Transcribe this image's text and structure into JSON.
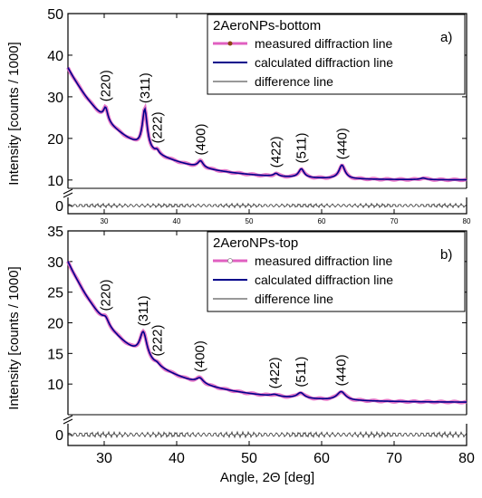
{
  "chart_data": [
    {
      "panel": "a)",
      "type": "line",
      "legend_title": "2AeroNPs-bottom",
      "legend_position": "top-right",
      "ylabel": "Intensity [counts / 1000]",
      "xlabel": "",
      "xlim": [
        25,
        80
      ],
      "ylim_upper": [
        8,
        50
      ],
      "ylim_lower": [
        -0.5,
        0.5
      ],
      "yticks_upper": [
        "10",
        "20",
        "30",
        "40",
        "50"
      ],
      "yticks_lower": [
        "0"
      ],
      "xticks": [
        "30",
        "40",
        "50",
        "60",
        "70",
        "80"
      ],
      "x_tick_style": "small labels",
      "axis_break": true,
      "background": 10,
      "decay": {
        "amp": 27,
        "rate": 0.12
      },
      "peaks": [
        {
          "label": "(220)",
          "x": 30.2,
          "height": 3.0,
          "width": 0.35
        },
        {
          "label": "(311)",
          "x": 35.6,
          "height": 9.5,
          "width": 0.4
        },
        {
          "label": "(222)",
          "x": 37.3,
          "height": 0.8,
          "width": 0.3
        },
        {
          "label": "(400)",
          "x": 43.3,
          "height": 1.6,
          "width": 0.45
        },
        {
          "label": "(422)",
          "x": 53.7,
          "height": 0.7,
          "width": 0.4
        },
        {
          "label": "(511)",
          "x": 57.2,
          "height": 2.1,
          "width": 0.45
        },
        {
          "label": "(440)",
          "x": 62.8,
          "height": 3.3,
          "width": 0.5
        },
        {
          "label": "",
          "x": 74.0,
          "height": 0.4,
          "width": 0.5
        }
      ],
      "series": [
        {
          "name": "measured diffraction line",
          "color": "#e060c0",
          "marker_color": "#8b4513",
          "marker": "dot"
        },
        {
          "name": "calculated diffraction line",
          "color": "#00008b"
        },
        {
          "name": "difference line",
          "color": "#333333"
        }
      ]
    },
    {
      "panel": "b)",
      "type": "line",
      "legend_title": "2AeroNPs-top",
      "legend_position": "top-right",
      "ylabel": "Intensity [counts / 1000]",
      "xlabel": "Angle, 2Θ [deg]",
      "xlim": [
        25,
        80
      ],
      "ylim_upper": [
        5,
        35
      ],
      "ylim_lower": [
        -0.5,
        0.5
      ],
      "yticks_upper": [
        "10",
        "15",
        "20",
        "25",
        "30",
        "35"
      ],
      "yticks_lower": [
        "0"
      ],
      "xticks": [
        "30",
        "40",
        "50",
        "60",
        "70",
        "80"
      ],
      "axis_break": true,
      "background": 7,
      "decay": {
        "amp": 23,
        "rate": 0.11
      },
      "peaks": [
        {
          "label": "(220)",
          "x": 30.2,
          "height": 1.0,
          "width": 0.5
        },
        {
          "label": "(311)",
          "x": 35.4,
          "height": 4.2,
          "width": 0.6
        },
        {
          "label": "(222)",
          "x": 37.3,
          "height": 0.3,
          "width": 0.4
        },
        {
          "label": "(400)",
          "x": 43.2,
          "height": 0.9,
          "width": 0.6
        },
        {
          "label": "(422)",
          "x": 53.5,
          "height": 0.3,
          "width": 0.6
        },
        {
          "label": "(511)",
          "x": 57.1,
          "height": 0.9,
          "width": 0.6
        },
        {
          "label": "(440)",
          "x": 62.7,
          "height": 1.4,
          "width": 0.7
        }
      ],
      "series": [
        {
          "name": "measured diffraction line",
          "color": "#e060c0",
          "marker_color": "#ffffff",
          "marker": "open-circle"
        },
        {
          "name": "calculated diffraction line",
          "color": "#00008b"
        },
        {
          "name": "difference line",
          "color": "#333333"
        }
      ]
    }
  ]
}
